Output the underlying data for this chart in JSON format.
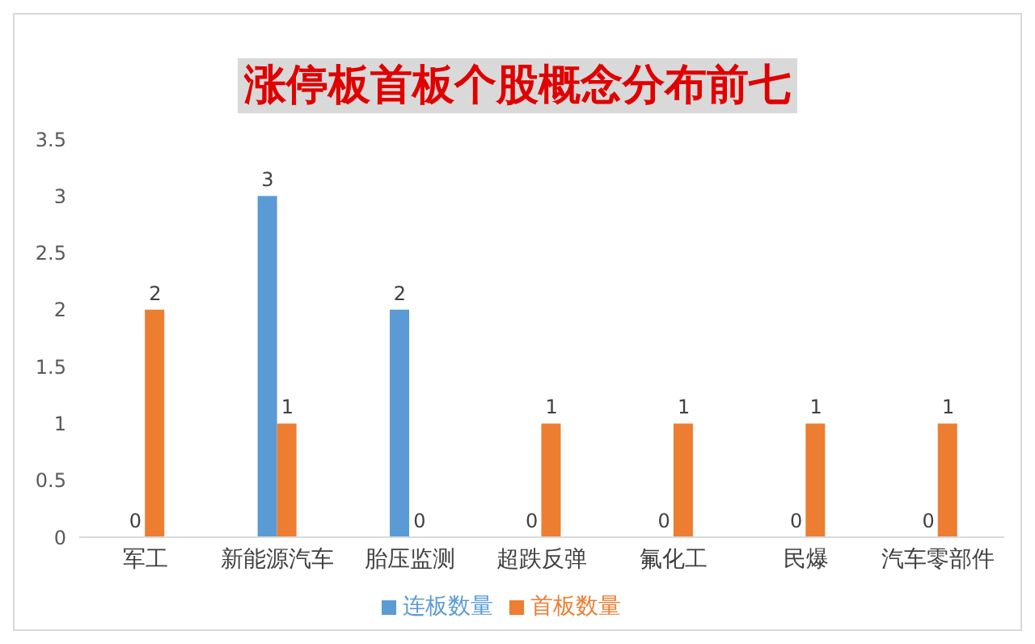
{
  "chart_data": {
    "type": "bar",
    "title": "涨停板首板个股概念分布前七",
    "categories": [
      "军工",
      "新能源汽车",
      "胎压监测",
      "超跌反弹",
      "氟化工",
      "民爆",
      "汽车零部件"
    ],
    "series": [
      {
        "name": "连板数量",
        "color": "#5b9bd5",
        "values": [
          0,
          3,
          2,
          0,
          0,
          0,
          0
        ]
      },
      {
        "name": "首板数量",
        "color": "#ed7d31",
        "values": [
          2,
          1,
          0,
          1,
          1,
          1,
          1
        ]
      }
    ],
    "ylim": [
      0,
      3.5
    ],
    "yticks": [
      0,
      0.5,
      1,
      1.5,
      2,
      2.5,
      3,
      3.5
    ],
    "grid": false,
    "legend": "bottom",
    "data_labels": true
  }
}
